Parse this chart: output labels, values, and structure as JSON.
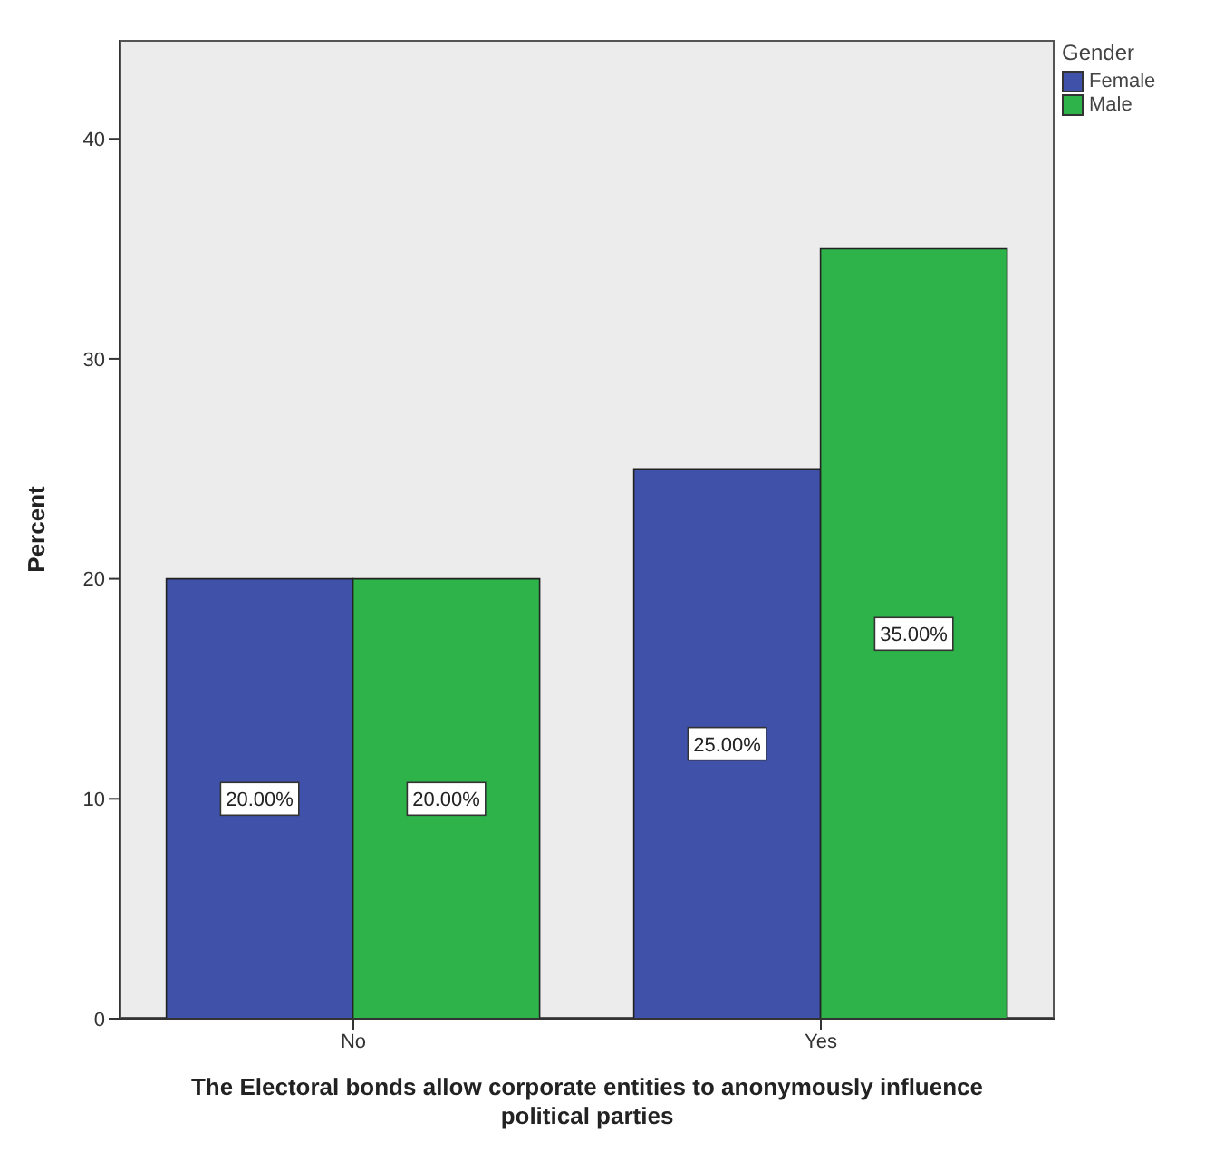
{
  "chart_data": {
    "type": "bar",
    "xlabel": "The Electoral bonds allow corporate entities to anonymously influence political parties",
    "ylabel": "Percent",
    "legend_title": "Gender",
    "categories": [
      "No",
      "Yes"
    ],
    "series": [
      {
        "name": "Female",
        "color": "#3f51a8",
        "values": [
          20,
          25
        ],
        "value_labels": [
          "20.00%",
          "25.00%"
        ]
      },
      {
        "name": "Male",
        "color": "#2db34a",
        "values": [
          20,
          35
        ],
        "value_labels": [
          "20.00%",
          "35.00%"
        ]
      }
    ],
    "ylim": [
      0,
      44.5
    ],
    "yticks": [
      0,
      10,
      20,
      30,
      40
    ],
    "legend": "top right"
  }
}
